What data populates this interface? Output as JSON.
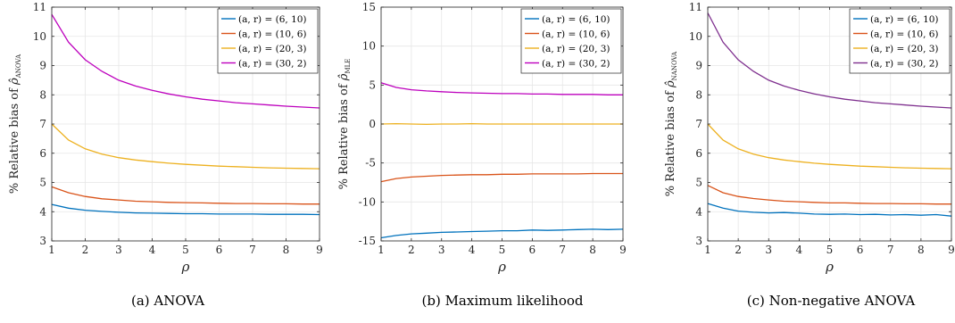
{
  "panels": [
    {
      "caption": "(a)  ANOVA",
      "ylabel": "% Relative bias of ρ̂ANOVA",
      "xlabel": "ρ",
      "legend_placement": "top-right",
      "chart_data": {
        "type": "line",
        "xlim": [
          1,
          9
        ],
        "ylim": [
          3,
          11
        ],
        "xticks": [
          1,
          2,
          3,
          4,
          5,
          6,
          7,
          8,
          9
        ],
        "yticks": [
          3,
          4,
          5,
          6,
          7,
          8,
          9,
          10,
          11
        ],
        "grid": true,
        "x": [
          1,
          1.5,
          2,
          2.5,
          3,
          3.5,
          4,
          4.5,
          5,
          5.5,
          6,
          6.5,
          7,
          7.5,
          8,
          8.5,
          9
        ],
        "series": [
          {
            "name": "(a, r) = (6, 10)",
            "color": "#0072BD",
            "values": [
              4.25,
              4.12,
              4.05,
              4.01,
              3.98,
              3.96,
              3.95,
              3.94,
              3.93,
              3.93,
              3.92,
              3.92,
              3.92,
              3.91,
              3.91,
              3.91,
              3.9
            ]
          },
          {
            "name": "(a, r) = (10, 6)",
            "color": "#D95319",
            "values": [
              4.85,
              4.65,
              4.52,
              4.44,
              4.4,
              4.36,
              4.34,
              4.32,
              4.31,
              4.3,
              4.29,
              4.28,
              4.28,
              4.27,
              4.27,
              4.26,
              4.26
            ]
          },
          {
            "name": "(a, r) = (20, 3)",
            "color": "#EDB120",
            "values": [
              7.0,
              6.45,
              6.15,
              5.97,
              5.85,
              5.77,
              5.71,
              5.66,
              5.62,
              5.59,
              5.56,
              5.54,
              5.52,
              5.5,
              5.49,
              5.48,
              5.47
            ]
          },
          {
            "name": "(a, r) = (30, 2)",
            "color": "#BD00BD",
            "values": [
              10.75,
              9.8,
              9.2,
              8.8,
              8.5,
              8.3,
              8.15,
              8.03,
              7.93,
              7.85,
              7.79,
              7.73,
              7.69,
              7.65,
              7.61,
              7.58,
              7.55
            ]
          }
        ]
      }
    },
    {
      "caption": "(b)  Maximum likelihood",
      "ylabel": "% Relative bias of ρ̂MLE",
      "xlabel": "ρ",
      "legend_placement": "top-right",
      "chart_data": {
        "type": "line",
        "xlim": [
          1,
          9
        ],
        "ylim": [
          -15,
          15
        ],
        "xticks": [
          1,
          2,
          3,
          4,
          5,
          6,
          7,
          8,
          9
        ],
        "yticks": [
          -15,
          -10,
          -5,
          0,
          5,
          10,
          15
        ],
        "grid": true,
        "x": [
          1,
          1.5,
          2,
          2.5,
          3,
          3.5,
          4,
          4.5,
          5,
          5.5,
          6,
          6.5,
          7,
          7.5,
          8,
          8.5,
          9
        ],
        "series": [
          {
            "name": "(a, r) = (6, 10)",
            "color": "#0072BD",
            "values": [
              -14.6,
              -14.3,
              -14.1,
              -14.0,
              -13.9,
              -13.85,
              -13.8,
              -13.75,
              -13.7,
              -13.7,
              -13.6,
              -13.65,
              -13.6,
              -13.55,
              -13.5,
              -13.55,
              -13.5
            ]
          },
          {
            "name": "(a, r) = (10, 6)",
            "color": "#D95319",
            "values": [
              -7.4,
              -7.0,
              -6.8,
              -6.7,
              -6.6,
              -6.55,
              -6.5,
              -6.5,
              -6.45,
              -6.45,
              -6.4,
              -6.4,
              -6.4,
              -6.4,
              -6.35,
              -6.35,
              -6.35
            ]
          },
          {
            "name": "(a, r) = (20, 3)",
            "color": "#EDB120",
            "values": [
              0.0,
              0.05,
              0.0,
              -0.05,
              0.0,
              0.0,
              0.05,
              0.0,
              0.0,
              0.0,
              0.0,
              0.0,
              0.0,
              0.0,
              0.0,
              0.0,
              0.0
            ]
          },
          {
            "name": "(a, r) = (30, 2)",
            "color": "#BD00BD",
            "values": [
              5.3,
              4.7,
              4.4,
              4.25,
              4.15,
              4.05,
              4.0,
              3.95,
              3.9,
              3.9,
              3.85,
              3.85,
              3.8,
              3.8,
              3.8,
              3.75,
              3.75
            ]
          }
        ]
      }
    },
    {
      "caption": "(c)  Non-negative ANOVA",
      "ylabel": "% Relative bias of ρ̂NANOVA",
      "xlabel": "ρ",
      "legend_placement": "top-right",
      "chart_data": {
        "type": "line",
        "xlim": [
          1,
          9
        ],
        "ylim": [
          3,
          11
        ],
        "xticks": [
          1,
          2,
          3,
          4,
          5,
          6,
          7,
          8,
          9
        ],
        "yticks": [
          3,
          4,
          5,
          6,
          7,
          8,
          9,
          10,
          11
        ],
        "grid": true,
        "x": [
          1,
          1.5,
          2,
          2.5,
          3,
          3.5,
          4,
          4.5,
          5,
          5.5,
          6,
          6.5,
          7,
          7.5,
          8,
          8.5,
          9
        ],
        "series": [
          {
            "name": "(a, r) = (6, 10)",
            "color": "#0072BD",
            "values": [
              4.28,
              4.12,
              4.02,
              3.98,
              3.96,
              3.97,
              3.95,
              3.92,
              3.91,
              3.92,
              3.9,
              3.91,
              3.89,
              3.9,
              3.88,
              3.9,
              3.85
            ]
          },
          {
            "name": "(a, r) = (10, 6)",
            "color": "#D95319",
            "values": [
              4.9,
              4.65,
              4.52,
              4.45,
              4.4,
              4.36,
              4.34,
              4.32,
              4.3,
              4.3,
              4.29,
              4.28,
              4.28,
              4.27,
              4.27,
              4.26,
              4.26
            ]
          },
          {
            "name": "(a, r) = (20, 3)",
            "color": "#EDB120",
            "values": [
              7.0,
              6.45,
              6.15,
              5.97,
              5.85,
              5.77,
              5.71,
              5.66,
              5.62,
              5.59,
              5.56,
              5.54,
              5.52,
              5.5,
              5.49,
              5.48,
              5.47
            ]
          },
          {
            "name": "(a, r) = (30, 2)",
            "color": "#7E2F8E",
            "values": [
              10.8,
              9.8,
              9.2,
              8.8,
              8.5,
              8.3,
              8.15,
              8.03,
              7.93,
              7.85,
              7.79,
              7.73,
              7.69,
              7.65,
              7.61,
              7.58,
              7.55
            ]
          }
        ]
      }
    }
  ]
}
